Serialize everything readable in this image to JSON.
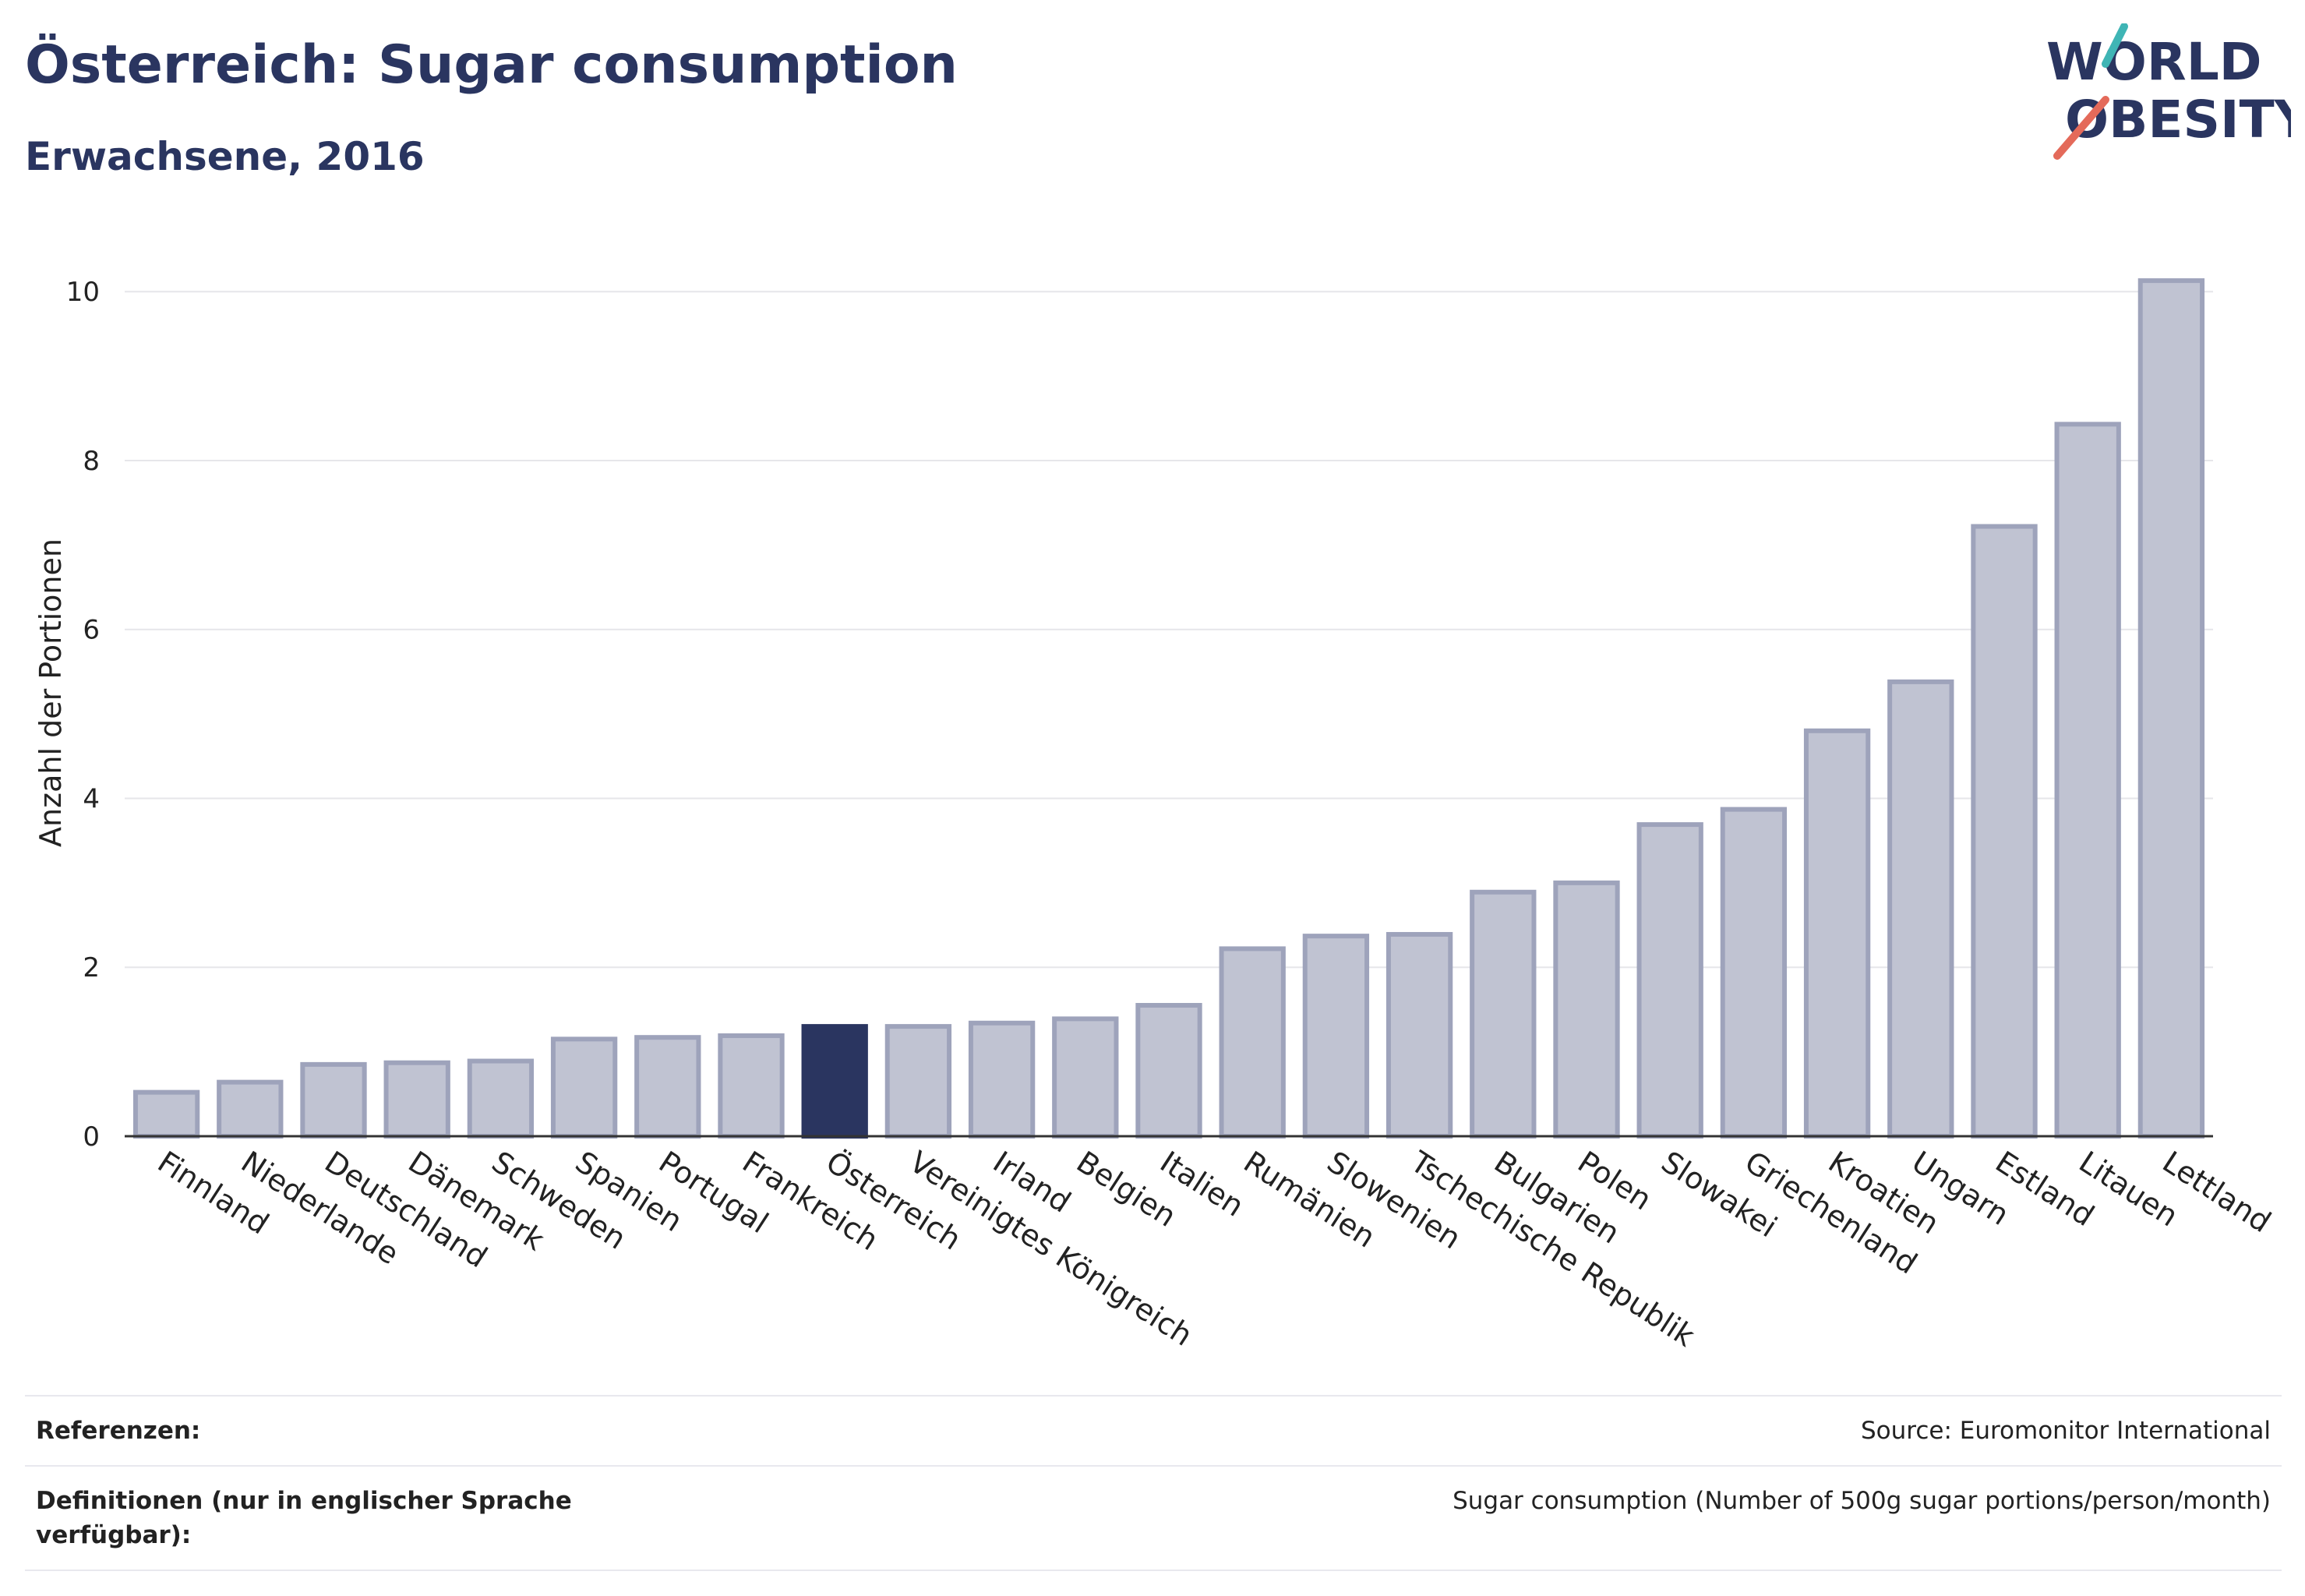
{
  "header": {
    "title": "Österreich: Sugar consumption",
    "subtitle": "Erwachsene, 2016"
  },
  "logo": {
    "line1": "WORLD",
    "line2": "OBESITY"
  },
  "colors": {
    "bar": "#c0c3d2",
    "bar_stroke": "#9ea3bb",
    "highlight": "#2a3560",
    "grid": "#e6e6ea",
    "axis": "#333333",
    "logo_teal": "#3fb5b5",
    "logo_coral": "#e46a5a"
  },
  "chart_data": {
    "type": "bar",
    "title": "Österreich: Sugar consumption",
    "subtitle": "Erwachsene, 2016",
    "xlabel": "",
    "ylabel": "Anzahl der Portionen",
    "ylim": [
      0,
      10.5
    ],
    "yticks": [
      0,
      2,
      4,
      6,
      8,
      10
    ],
    "grid": true,
    "highlight": "Österreich",
    "categories": [
      "Finnland",
      "Niederlande",
      "Deutschland",
      "Dänemark",
      "Schweden",
      "Spanien",
      "Portugal",
      "Frankreich",
      "Österreich",
      "Vereinigtes Königreich",
      "Irland",
      "Belgien",
      "Italien",
      "Rumänien",
      "Slowenien",
      "Tschechische Republik",
      "Bulgarien",
      "Polen",
      "Slowakei",
      "Griechenland",
      "Kroatien",
      "Ungarn",
      "Estland",
      "Litauen",
      "Lettland"
    ],
    "values": [
      0.52,
      0.64,
      0.85,
      0.87,
      0.89,
      1.15,
      1.17,
      1.19,
      1.3,
      1.3,
      1.34,
      1.39,
      1.55,
      2.22,
      2.37,
      2.39,
      2.89,
      3.0,
      3.69,
      3.87,
      4.8,
      5.38,
      7.22,
      8.43,
      10.13
    ]
  },
  "footer": {
    "references_label": "Referenzen:",
    "references_value": "Source: Euromonitor International",
    "definitions_label": "Definitionen (nur in englischer Sprache verfügbar):",
    "definitions_value": "Sugar consumption (Number of 500g sugar portions/person/month)"
  }
}
